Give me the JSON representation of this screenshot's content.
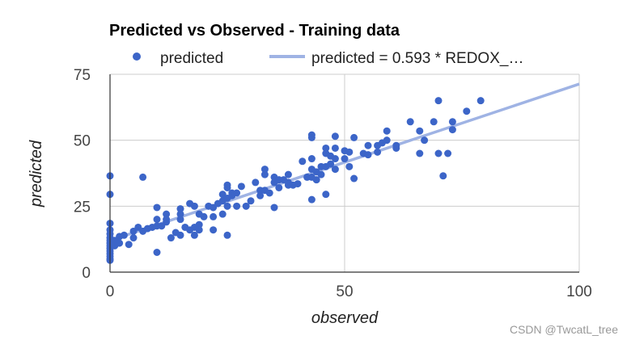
{
  "chart_data": {
    "type": "scatter",
    "title": "Predicted vs Observed - Training data",
    "xlabel": "observed",
    "ylabel": "predicted",
    "xlim": [
      0,
      100
    ],
    "ylim": [
      0,
      75
    ],
    "xticks": [
      "0",
      "50",
      "100"
    ],
    "yticks": [
      "0",
      "25",
      "50",
      "75"
    ],
    "grid": true,
    "legend_position": "top",
    "series": [
      {
        "name": "predicted",
        "kind": "points",
        "color": "#3c65c8",
        "points": [
          [
            0,
            36.5
          ],
          [
            0,
            29.5
          ],
          [
            0,
            18.5
          ],
          [
            0,
            16
          ],
          [
            0,
            14.5
          ],
          [
            0,
            13
          ],
          [
            0,
            12
          ],
          [
            0,
            11
          ],
          [
            0,
            10
          ],
          [
            0,
            9
          ],
          [
            0,
            8
          ],
          [
            0,
            7
          ],
          [
            0,
            6
          ],
          [
            0,
            5
          ],
          [
            0,
            4.5
          ],
          [
            1,
            12
          ],
          [
            1,
            10
          ],
          [
            2,
            13.5
          ],
          [
            2,
            11
          ],
          [
            3,
            14
          ],
          [
            4,
            10.5
          ],
          [
            5,
            15.5
          ],
          [
            5,
            13
          ],
          [
            6,
            17
          ],
          [
            7,
            15.5
          ],
          [
            7,
            36
          ],
          [
            8,
            16.5
          ],
          [
            9,
            17
          ],
          [
            10,
            24.5
          ],
          [
            10,
            17.5
          ],
          [
            10,
            7.5
          ],
          [
            10,
            20
          ],
          [
            11,
            17.5
          ],
          [
            12,
            19
          ],
          [
            12,
            22
          ],
          [
            12,
            20
          ],
          [
            13,
            13
          ],
          [
            14,
            15
          ],
          [
            15,
            24
          ],
          [
            15,
            22
          ],
          [
            15,
            20
          ],
          [
            15,
            14
          ],
          [
            16,
            17
          ],
          [
            17,
            16
          ],
          [
            17,
            26
          ],
          [
            18,
            25
          ],
          [
            18,
            17
          ],
          [
            18,
            14
          ],
          [
            19,
            22
          ],
          [
            19,
            18
          ],
          [
            19,
            16
          ],
          [
            20,
            21
          ],
          [
            21,
            25
          ],
          [
            22,
            24.5
          ],
          [
            22,
            21
          ],
          [
            22,
            16
          ],
          [
            23,
            26
          ],
          [
            24,
            29.5
          ],
          [
            24,
            27
          ],
          [
            24,
            22
          ],
          [
            25,
            25
          ],
          [
            25,
            14
          ],
          [
            25,
            33
          ],
          [
            25,
            32
          ],
          [
            25,
            28
          ],
          [
            26,
            30
          ],
          [
            26,
            29
          ],
          [
            27,
            25
          ],
          [
            27,
            30
          ],
          [
            28,
            32.5
          ],
          [
            29,
            25
          ],
          [
            30,
            27
          ],
          [
            31,
            34
          ],
          [
            32,
            31
          ],
          [
            32,
            29
          ],
          [
            33,
            39
          ],
          [
            33,
            37
          ],
          [
            33,
            31
          ],
          [
            34,
            30
          ],
          [
            35,
            36
          ],
          [
            35,
            34
          ],
          [
            35,
            24.5
          ],
          [
            36,
            35
          ],
          [
            36,
            32
          ],
          [
            37,
            35
          ],
          [
            38,
            37
          ],
          [
            38,
            34
          ],
          [
            38,
            33
          ],
          [
            39,
            33
          ],
          [
            40,
            33.5
          ],
          [
            41,
            42
          ],
          [
            42,
            36
          ],
          [
            43,
            52
          ],
          [
            43,
            51
          ],
          [
            43,
            43
          ],
          [
            43,
            39
          ],
          [
            43,
            36
          ],
          [
            43,
            27.5
          ],
          [
            44,
            35
          ],
          [
            44,
            38
          ],
          [
            45,
            37
          ],
          [
            45,
            40
          ],
          [
            46,
            40
          ],
          [
            46,
            45
          ],
          [
            46,
            47
          ],
          [
            46,
            29.5
          ],
          [
            47,
            44
          ],
          [
            47,
            41
          ],
          [
            48,
            51.5
          ],
          [
            48,
            47
          ],
          [
            48,
            43
          ],
          [
            48,
            39
          ],
          [
            50,
            46
          ],
          [
            50,
            43
          ],
          [
            51,
            45.5
          ],
          [
            51,
            40
          ],
          [
            52,
            51
          ],
          [
            52,
            35.5
          ],
          [
            54,
            45
          ],
          [
            55,
            44.5
          ],
          [
            55,
            48
          ],
          [
            57,
            45.5
          ],
          [
            57,
            48
          ],
          [
            58,
            49
          ],
          [
            59,
            53.5
          ],
          [
            59,
            50
          ],
          [
            61,
            48
          ],
          [
            61,
            47
          ],
          [
            64,
            57
          ],
          [
            66,
            45
          ],
          [
            66,
            53.5
          ],
          [
            67,
            50
          ],
          [
            69,
            57
          ],
          [
            70,
            45
          ],
          [
            70,
            65
          ],
          [
            71,
            36.5
          ],
          [
            72,
            45
          ],
          [
            73,
            57
          ],
          [
            73,
            54
          ],
          [
            76,
            61
          ],
          [
            79,
            65
          ]
        ]
      },
      {
        "name": "predicted = 0.593 * REDOX_…",
        "kind": "trendline",
        "color": "#9fb3e4",
        "slope": 0.593,
        "intercept": 12,
        "x_range": [
          0,
          100
        ]
      }
    ]
  },
  "watermark": "CSDN @TwcatL_tree"
}
